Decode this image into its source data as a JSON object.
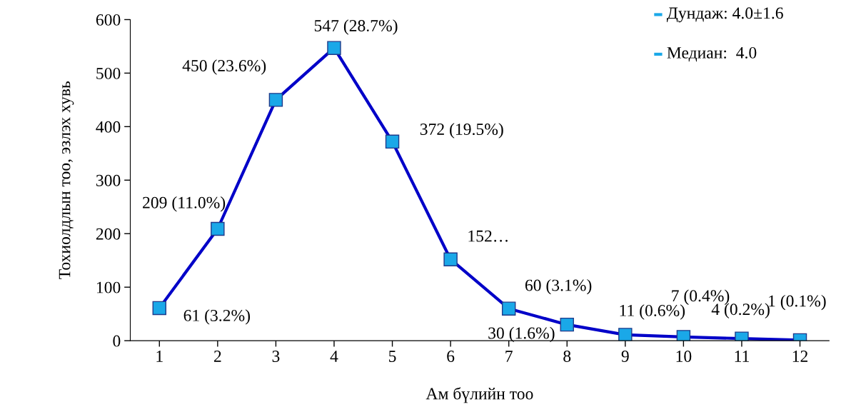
{
  "chart_data": {
    "type": "line",
    "categories": [
      "1",
      "2",
      "3",
      "4",
      "5",
      "6",
      "7",
      "8",
      "9",
      "10",
      "11",
      "12"
    ],
    "series": [
      {
        "color": "#0000c8",
        "values": [
          61,
          209,
          450,
          547,
          372,
          152,
          60,
          30,
          11,
          7,
          4,
          1
        ],
        "value_labels": [
          "61 (3.2%)",
          "209 (11.0%)",
          "450 (23.6%)",
          "547 (28.7%)",
          "372 (19.5%)",
          "152…",
          "60 (3.1%)",
          "30 (1.6%)",
          "11 (0.6%)",
          "7 (0.4%)",
          "4 (0.2%)",
          "1 (0.1%)"
        ]
      }
    ],
    "marker": "square",
    "line_style": "solid",
    "ylim": [
      0,
      600
    ],
    "yticks": [
      0,
      100,
      200,
      300,
      400,
      500,
      600
    ],
    "xlabel": "Ам бүлийн тоо",
    "ylabel": "Тохиолдлын тоо, эзлэх хувь",
    "annotations": [
      "Дундаж: 4.0±1.6",
      "Медиан:  4.0"
    ],
    "grid": false,
    "legend": false
  }
}
